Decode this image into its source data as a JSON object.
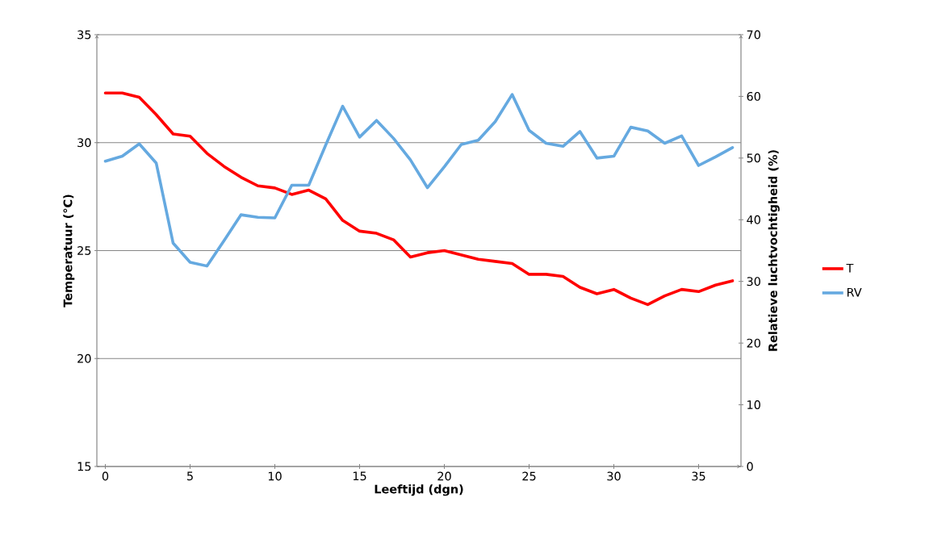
{
  "chart_data": {
    "type": "line",
    "xlabel": "Leeftijd (dgn)",
    "ylabel": "Temperatuur (°C)",
    "y2label": "Relatieve luchtvochtigheid (%)",
    "x": [
      0,
      1,
      2,
      3,
      4,
      5,
      6,
      7,
      8,
      9,
      10,
      11,
      12,
      13,
      14,
      15,
      16,
      17,
      18,
      19,
      20,
      21,
      22,
      23,
      24,
      25,
      26,
      27,
      28,
      29,
      30,
      31,
      32,
      33,
      34,
      35,
      36,
      37
    ],
    "xlim": [
      -0.5,
      37.5
    ],
    "xticks": [
      0,
      5,
      10,
      15,
      20,
      25,
      30,
      35
    ],
    "ylim": [
      15,
      35
    ],
    "yticks": [
      15,
      20,
      25,
      30,
      35
    ],
    "y2lim": [
      0,
      70
    ],
    "y2ticks": [
      0,
      10,
      20,
      30,
      40,
      50,
      60,
      70
    ],
    "grid": "y",
    "legend": "right",
    "marker": "none",
    "line_style": "solid",
    "series": [
      {
        "name": "T",
        "color": "#ff0000",
        "values": [
          32.3,
          32.3,
          32.1,
          31.3,
          30.4,
          30.3,
          29.5,
          28.9,
          28.4,
          28.0,
          27.9,
          27.6,
          27.8,
          27.4,
          26.4,
          25.9,
          25.8,
          25.5,
          24.7,
          24.9,
          25.0,
          24.8,
          24.6,
          24.5,
          24.4,
          23.9,
          23.9,
          23.8,
          23.3,
          23.0,
          23.2,
          22.8,
          22.5,
          22.9,
          23.2,
          23.1,
          23.4,
          23.6
        ]
      },
      {
        "name": "RV",
        "color": "#65a9e0",
        "axis": "y2",
        "values": [
          49.5,
          50.3,
          52.3,
          49.2,
          36.2,
          33.1,
          32.5,
          36.6,
          40.8,
          40.4,
          40.3,
          45.6,
          45.6,
          52.1,
          58.4,
          53.4,
          56.1,
          53.2,
          49.7,
          45.2,
          48.6,
          52.2,
          52.9,
          55.9,
          60.3,
          54.5,
          52.4,
          51.9,
          54.3,
          50.0,
          50.3,
          55.0,
          54.4,
          52.4,
          53.6,
          48.8,
          50.2,
          51.7
        ]
      }
    ]
  }
}
